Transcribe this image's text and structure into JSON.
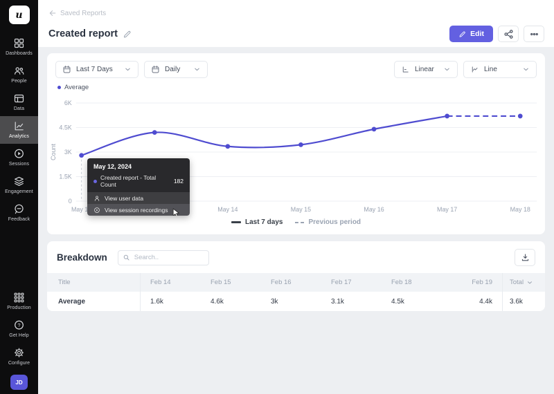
{
  "sidebar": {
    "logo_letter": "u",
    "items": [
      {
        "label": "Dashboards"
      },
      {
        "label": "People"
      },
      {
        "label": "Data"
      },
      {
        "label": "Analytics",
        "active": true
      },
      {
        "label": "Sessions"
      },
      {
        "label": "Engagement"
      },
      {
        "label": "Feedback"
      }
    ],
    "bottom_items": [
      {
        "label": "Production"
      },
      {
        "label": "Get Help"
      },
      {
        "label": "Configure"
      }
    ],
    "avatar_initials": "JD"
  },
  "header": {
    "breadcrumb": "Saved Reports",
    "title": "Created report",
    "edit_label": "Edit"
  },
  "chart_card": {
    "filters": {
      "range": "Last 7 Days",
      "granularity": "Daily",
      "scale": "Linear",
      "type": "Line"
    },
    "series_legend": "Average",
    "legend": {
      "current": "Last 7 days",
      "previous": "Previous period"
    }
  },
  "chart_data": {
    "type": "line",
    "title": "",
    "xlabel": "",
    "ylabel": "Count",
    "categories": [
      "May 12",
      "May 13",
      "May 14",
      "May 15",
      "May 16",
      "May 17",
      "May 18"
    ],
    "series": [
      {
        "name": "Average",
        "values": [
          2800,
          4200,
          3350,
          3450,
          4400,
          5200,
          5200
        ],
        "color": "#4f4cd0",
        "dashed_from_index": 5
      }
    ],
    "y_ticks": [
      "0",
      "1.5K",
      "3K",
      "4.5K",
      "6K"
    ],
    "y_tick_values": [
      0,
      1500,
      3000,
      4500,
      6000
    ],
    "ylim": [
      0,
      6000
    ],
    "grid": true,
    "legend_position": "bottom",
    "hover_index": 0
  },
  "tooltip": {
    "date": "May 12, 2024",
    "series_label": "Created report - Total Count",
    "value": "182",
    "actions": [
      {
        "label": "View user data"
      },
      {
        "label": "View session recordings"
      }
    ]
  },
  "breakdown": {
    "title": "Breakdown",
    "search_placeholder": "Search..",
    "table": {
      "columns": [
        "Title",
        "Feb 14",
        "Feb 15",
        "Feb 16",
        "Feb 17",
        "Feb 18",
        "Feb 19",
        "Total"
      ],
      "rows": [
        {
          "title": "Average",
          "values": [
            "1.6k",
            "4.6k",
            "3k",
            "3.1k",
            "4.5k",
            "4.4k",
            "3.6k"
          ]
        }
      ]
    }
  },
  "colors": {
    "accent": "#4f4cd0",
    "edit_button": "#6360e1",
    "sidebar_bg": "#0d0d0e",
    "sidebar_active": "#4c4c4e",
    "page_bg": "#edeff2",
    "tooltip_bg": "#29292c",
    "avatar_bg": "#5956d9"
  },
  "icons": [
    "back-arrow-icon",
    "edit-pencil-icon",
    "share-icon",
    "more-icon",
    "calendar-icon",
    "chevron-down-icon",
    "linear-scale-icon",
    "line-type-icon",
    "search-icon",
    "download-icon",
    "user-icon",
    "play-icon",
    "mouse-cursor-icon"
  ]
}
